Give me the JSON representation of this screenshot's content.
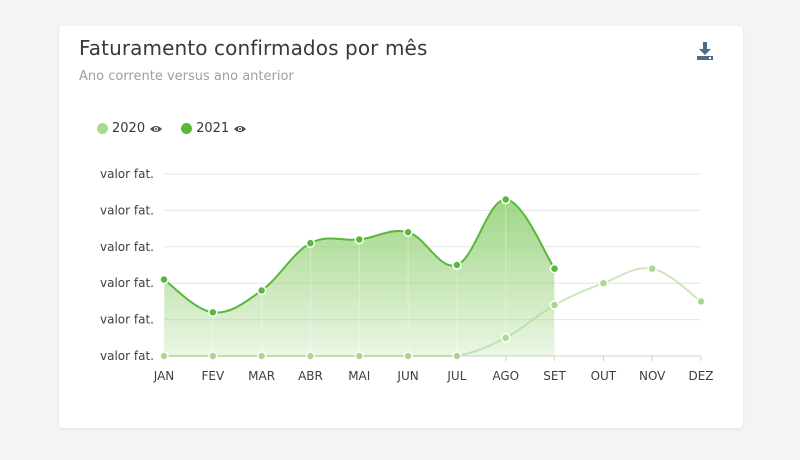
{
  "card": {
    "title": "Faturamento confirmados por mês",
    "subtitle": "Ano corrente versus ano anterior",
    "download_icon": "download-icon"
  },
  "colors": {
    "series_2020": "#a8d98f",
    "series_2021": "#58b83a",
    "fill_2021": "#8fcf70",
    "grid": "#e6e6e6",
    "axis": "#cfcfcf"
  },
  "chart_data": {
    "type": "area",
    "categories": [
      "JAN",
      "FEV",
      "MAR",
      "ABR",
      "MAI",
      "JUN",
      "JUL",
      "AGO",
      "SET",
      "OUT",
      "NOV",
      "DEZ"
    ],
    "y_tick_labels": [
      "valor fat.",
      "valor fat.",
      "valor fat.",
      "valor fat.",
      "valor fat.",
      "valor fat."
    ],
    "ylim": [
      0,
      5
    ],
    "grid": true,
    "legend_position": "top-left",
    "series": [
      {
        "name": "2020",
        "values": [
          0,
          0,
          0,
          0,
          0,
          0,
          0,
          0.5,
          1.4,
          2.0,
          2.4,
          1.5
        ],
        "visible_icon": "eye-icon"
      },
      {
        "name": "2021",
        "values": [
          2.1,
          1.2,
          1.8,
          3.1,
          3.2,
          3.4,
          2.5,
          4.3,
          2.4,
          null,
          null,
          null
        ],
        "visible_icon": "eye-icon"
      }
    ]
  }
}
